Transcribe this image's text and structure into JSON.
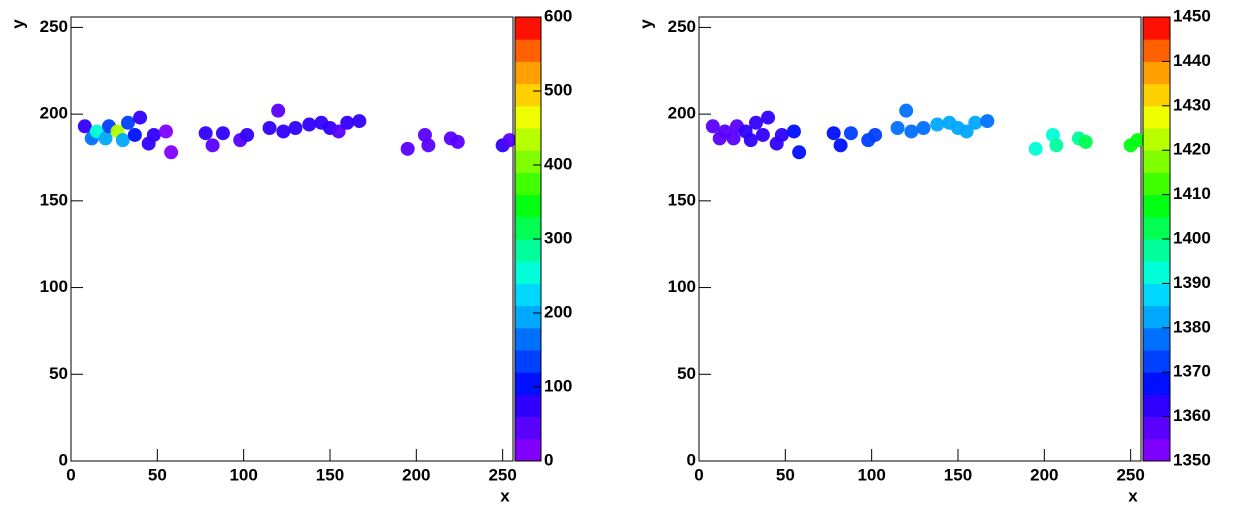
{
  "chart_data": [
    {
      "type": "histogram2d",
      "x_label": "x",
      "y_label": "y",
      "xlim": [
        0,
        256
      ],
      "ylim": [
        0,
        256
      ],
      "zlim": [
        0,
        600
      ],
      "xticks": [
        0,
        50,
        100,
        150,
        200,
        250
      ],
      "yticks": [
        0,
        50,
        100,
        150,
        200,
        250
      ],
      "zticks": [
        0,
        100,
        200,
        300,
        400,
        500,
        600
      ],
      "colors": [
        "#8000ff",
        "#5a00ff",
        "#3000ff",
        "#0010ff",
        "#0040ff",
        "#0070ff",
        "#00a8ff",
        "#00d8ff",
        "#00ffd8",
        "#00ff9c",
        "#00ff50",
        "#00ff10",
        "#40ff00",
        "#80ff00",
        "#b8ff00",
        "#f0ff00",
        "#ffd000",
        "#ffa000",
        "#ff6000",
        "#ff1000"
      ],
      "x": [
        8,
        12,
        15,
        20,
        22,
        27,
        30,
        33,
        37,
        40,
        45,
        48,
        58,
        55,
        78,
        82,
        88,
        98,
        102,
        115,
        120,
        123,
        130,
        138,
        145,
        150,
        155,
        160,
        167,
        195,
        205,
        207,
        220,
        224,
        250,
        254
      ],
      "y": [
        193,
        186,
        190,
        186,
        193,
        190,
        185,
        195,
        188,
        198,
        183,
        188,
        178,
        190,
        189,
        182,
        189,
        185,
        188,
        192,
        202,
        190,
        192,
        194,
        195,
        192,
        190,
        195,
        196,
        180,
        188,
        182,
        186,
        184,
        182,
        185
      ],
      "z": [
        80,
        150,
        250,
        200,
        120,
        420,
        200,
        140,
        90,
        70,
        60,
        70,
        20,
        20,
        60,
        50,
        60,
        50,
        60,
        60,
        40,
        70,
        60,
        60,
        70,
        60,
        50,
        60,
        70,
        50,
        50,
        40,
        50,
        50,
        60,
        50
      ]
    },
    {
      "type": "histogram2d",
      "x_label": "x",
      "y_label": "y",
      "xlim": [
        0,
        256
      ],
      "ylim": [
        0,
        256
      ],
      "zlim": [
        1350,
        1450
      ],
      "xticks": [
        0,
        50,
        100,
        150,
        200,
        250
      ],
      "yticks": [
        0,
        50,
        100,
        150,
        200,
        250
      ],
      "zticks": [
        1350,
        1360,
        1370,
        1380,
        1390,
        1400,
        1410,
        1420,
        1430,
        1440,
        1450
      ],
      "colors": [
        "#8000ff",
        "#5a00ff",
        "#3000ff",
        "#0010ff",
        "#0040ff",
        "#0070ff",
        "#00a8ff",
        "#00d8ff",
        "#00ffd8",
        "#00ff9c",
        "#00ff50",
        "#00ff10",
        "#40ff00",
        "#80ff00",
        "#b8ff00",
        "#f0ff00",
        "#ffd000",
        "#ffa000",
        "#ff6000",
        "#ff1000"
      ],
      "x": [
        8,
        12,
        15,
        20,
        22,
        27,
        30,
        33,
        37,
        40,
        45,
        48,
        58,
        55,
        78,
        82,
        88,
        98,
        102,
        115,
        120,
        123,
        130,
        138,
        145,
        150,
        155,
        160,
        167,
        195,
        205,
        207,
        220,
        224,
        250,
        254
      ],
      "y": [
        193,
        186,
        190,
        186,
        193,
        190,
        185,
        195,
        188,
        198,
        183,
        188,
        178,
        190,
        189,
        182,
        189,
        185,
        188,
        192,
        202,
        190,
        192,
        194,
        195,
        192,
        190,
        195,
        196,
        180,
        188,
        182,
        186,
        184,
        182,
        185
      ],
      "z": [
        1357,
        1358,
        1358,
        1359,
        1359,
        1360,
        1360,
        1360,
        1361,
        1362,
        1363,
        1364,
        1366,
        1365,
        1368,
        1369,
        1370,
        1371,
        1372,
        1375,
        1376,
        1377,
        1378,
        1380,
        1381,
        1382,
        1381,
        1380,
        1379,
        1392,
        1394,
        1396,
        1398,
        1400,
        1406,
        1409
      ]
    }
  ]
}
